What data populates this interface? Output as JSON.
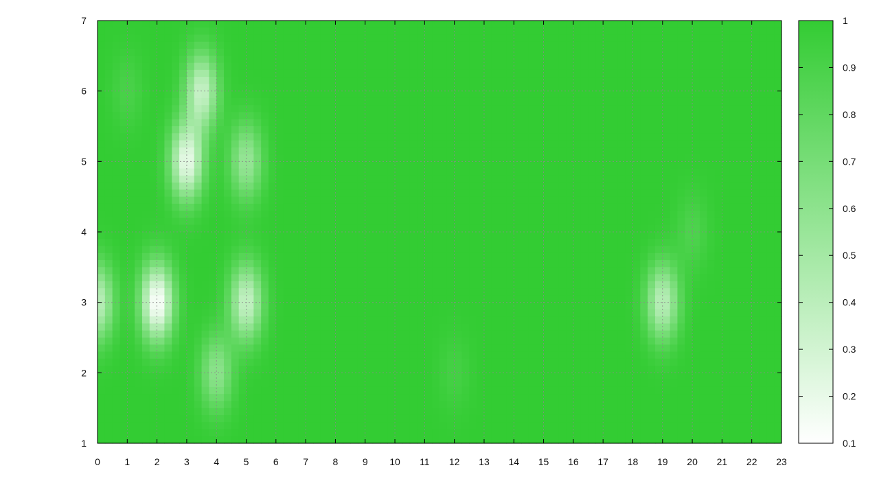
{
  "chart_data": {
    "type": "heatmap",
    "title": "",
    "xlabel": "",
    "ylabel": "",
    "xlim": [
      0,
      23
    ],
    "ylim": [
      1,
      7
    ],
    "x_ticks": [
      "0",
      "1",
      "2",
      "3",
      "4",
      "5",
      "6",
      "7",
      "8",
      "9",
      "10",
      "11",
      "12",
      "13",
      "14",
      "15",
      "16",
      "17",
      "18",
      "19",
      "20",
      "21",
      "22",
      "23"
    ],
    "y_ticks": [
      "1",
      "2",
      "3",
      "4",
      "5",
      "6",
      "7"
    ],
    "colorbar": {
      "range": [
        0.1,
        1
      ],
      "ticks": [
        "0.1",
        "0.2",
        "0.3",
        "0.4",
        "0.5",
        "0.6",
        "0.7",
        "0.8",
        "0.9",
        "1"
      ],
      "low_color": "#ffffff",
      "high_color": "#33cc33"
    },
    "grid": true,
    "default_value": 1.0,
    "low_spots": [
      {
        "x": 1,
        "y": 6,
        "value": 0.9
      },
      {
        "x": 3,
        "y": 5,
        "value": 0.2
      },
      {
        "x": 3.5,
        "y": 6,
        "value": 0.35
      },
      {
        "x": 5,
        "y": 5,
        "value": 0.55
      },
      {
        "x": 2,
        "y": 3,
        "value": 0.1
      },
      {
        "x": 0,
        "y": 3,
        "value": 0.4
      },
      {
        "x": 5,
        "y": 3,
        "value": 0.35
      },
      {
        "x": 4,
        "y": 2,
        "value": 0.6
      },
      {
        "x": 12,
        "y": 2,
        "value": 0.92
      },
      {
        "x": 19,
        "y": 3,
        "value": 0.4
      },
      {
        "x": 20,
        "y": 4,
        "value": 0.88
      }
    ]
  }
}
